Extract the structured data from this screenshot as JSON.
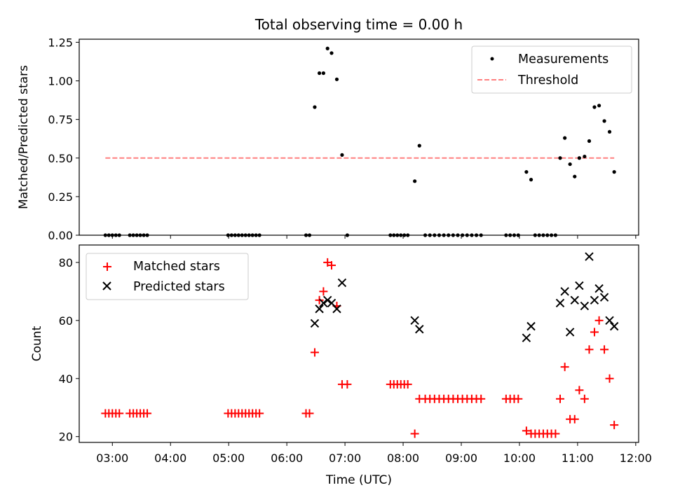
{
  "figure_title": "Total observing time = 0.00 h",
  "xlabel": "Time (UTC)",
  "x_tick_labels": [
    "03:00",
    "04:00",
    "05:00",
    "06:00",
    "07:00",
    "08:00",
    "09:00",
    "10:00",
    "11:00",
    "12:00"
  ],
  "colors": {
    "measurements": "#000000",
    "threshold": "#ff7f7f",
    "matched": "#ff0000",
    "predicted": "#000000"
  },
  "chart_data": [
    {
      "type": "scatter",
      "panel": "top",
      "ylabel": "Matched/Predicted stars",
      "xlim": [
        2.43,
        12.05
      ],
      "ylim": [
        0,
        1.27
      ],
      "y_tick_labels": [
        "0.00",
        "0.25",
        "0.50",
        "0.75",
        "1.00",
        "1.25"
      ],
      "legend": "top-right",
      "series": [
        {
          "name": "Measurements",
          "marker": "dot",
          "points": [
            [
              2.88,
              0
            ],
            [
              2.94,
              0
            ],
            [
              3.0,
              0
            ],
            [
              3.06,
              0
            ],
            [
              3.12,
              0
            ],
            [
              3.3,
              0
            ],
            [
              3.36,
              0
            ],
            [
              3.42,
              0
            ],
            [
              3.48,
              0
            ],
            [
              3.54,
              0
            ],
            [
              3.6,
              0
            ],
            [
              4.99,
              0
            ],
            [
              5.05,
              0
            ],
            [
              5.11,
              0
            ],
            [
              5.17,
              0
            ],
            [
              5.23,
              0
            ],
            [
              5.29,
              0
            ],
            [
              5.35,
              0
            ],
            [
              5.41,
              0
            ],
            [
              5.47,
              0
            ],
            [
              5.53,
              0
            ],
            [
              6.33,
              0
            ],
            [
              6.39,
              0
            ],
            [
              6.48,
              0.83
            ],
            [
              6.56,
              1.05
            ],
            [
              6.63,
              1.05
            ],
            [
              6.7,
              1.21
            ],
            [
              6.77,
              1.18
            ],
            [
              6.86,
              1.01
            ],
            [
              6.95,
              0.52
            ],
            [
              7.04,
              0
            ],
            [
              7.78,
              0
            ],
            [
              7.84,
              0
            ],
            [
              7.9,
              0
            ],
            [
              7.96,
              0
            ],
            [
              8.02,
              0
            ],
            [
              8.08,
              0
            ],
            [
              8.2,
              0.35
            ],
            [
              8.28,
              0.58
            ],
            [
              8.38,
              0
            ],
            [
              8.46,
              0
            ],
            [
              8.54,
              0
            ],
            [
              8.62,
              0
            ],
            [
              8.7,
              0
            ],
            [
              8.78,
              0
            ],
            [
              8.86,
              0
            ],
            [
              8.94,
              0
            ],
            [
              9.02,
              0
            ],
            [
              9.1,
              0
            ],
            [
              9.18,
              0
            ],
            [
              9.26,
              0
            ],
            [
              9.34,
              0
            ],
            [
              9.77,
              0
            ],
            [
              9.84,
              0
            ],
            [
              9.91,
              0
            ],
            [
              9.98,
              0
            ],
            [
              10.12,
              0.41
            ],
            [
              10.2,
              0.36
            ],
            [
              10.27,
              0
            ],
            [
              10.34,
              0
            ],
            [
              10.41,
              0
            ],
            [
              10.48,
              0
            ],
            [
              10.55,
              0
            ],
            [
              10.62,
              0
            ],
            [
              10.7,
              0.5
            ],
            [
              10.78,
              0.63
            ],
            [
              10.87,
              0.46
            ],
            [
              10.95,
              0.38
            ],
            [
              11.03,
              0.5
            ],
            [
              11.12,
              0.51
            ],
            [
              11.2,
              0.61
            ],
            [
              11.29,
              0.83
            ],
            [
              11.37,
              0.84
            ],
            [
              11.46,
              0.74
            ],
            [
              11.55,
              0.67
            ],
            [
              11.63,
              0.41
            ]
          ]
        },
        {
          "name": "Threshold",
          "line": "dashed",
          "points": [
            [
              2.88,
              0.5
            ],
            [
              11.63,
              0.5
            ]
          ]
        }
      ]
    },
    {
      "type": "scatter",
      "panel": "bottom",
      "xlabel": "Time (UTC)",
      "ylabel": "Count",
      "xlim": [
        2.43,
        12.05
      ],
      "ylim": [
        18,
        86
      ],
      "y_tick_labels": [
        "20",
        "40",
        "60",
        "80"
      ],
      "legend": "top-left",
      "series": [
        {
          "name": "Matched stars",
          "marker": "plus",
          "points": [
            [
              2.88,
              28
            ],
            [
              2.94,
              28
            ],
            [
              3.0,
              28
            ],
            [
              3.06,
              28
            ],
            [
              3.12,
              28
            ],
            [
              3.3,
              28
            ],
            [
              3.36,
              28
            ],
            [
              3.42,
              28
            ],
            [
              3.48,
              28
            ],
            [
              3.54,
              28
            ],
            [
              3.6,
              28
            ],
            [
              4.99,
              28
            ],
            [
              5.05,
              28
            ],
            [
              5.11,
              28
            ],
            [
              5.17,
              28
            ],
            [
              5.23,
              28
            ],
            [
              5.29,
              28
            ],
            [
              5.35,
              28
            ],
            [
              5.41,
              28
            ],
            [
              5.47,
              28
            ],
            [
              5.53,
              28
            ],
            [
              6.33,
              28
            ],
            [
              6.39,
              28
            ],
            [
              6.48,
              49
            ],
            [
              6.56,
              67
            ],
            [
              6.63,
              70
            ],
            [
              6.7,
              80
            ],
            [
              6.77,
              79
            ],
            [
              6.86,
              65
            ],
            [
              6.95,
              38
            ],
            [
              7.04,
              38
            ],
            [
              7.78,
              38
            ],
            [
              7.84,
              38
            ],
            [
              7.9,
              38
            ],
            [
              7.96,
              38
            ],
            [
              8.02,
              38
            ],
            [
              8.08,
              38
            ],
            [
              8.2,
              21
            ],
            [
              8.28,
              33
            ],
            [
              8.38,
              33
            ],
            [
              8.46,
              33
            ],
            [
              8.54,
              33
            ],
            [
              8.62,
              33
            ],
            [
              8.7,
              33
            ],
            [
              8.78,
              33
            ],
            [
              8.86,
              33
            ],
            [
              8.94,
              33
            ],
            [
              9.02,
              33
            ],
            [
              9.1,
              33
            ],
            [
              9.18,
              33
            ],
            [
              9.26,
              33
            ],
            [
              9.34,
              33
            ],
            [
              9.77,
              33
            ],
            [
              9.84,
              33
            ],
            [
              9.91,
              33
            ],
            [
              9.98,
              33
            ],
            [
              10.12,
              22
            ],
            [
              10.2,
              21
            ],
            [
              10.27,
              21
            ],
            [
              10.34,
              21
            ],
            [
              10.41,
              21
            ],
            [
              10.48,
              21
            ],
            [
              10.55,
              21
            ],
            [
              10.62,
              21
            ],
            [
              10.7,
              33
            ],
            [
              10.78,
              44
            ],
            [
              10.87,
              26
            ],
            [
              10.95,
              26
            ],
            [
              11.03,
              36
            ],
            [
              11.12,
              33
            ],
            [
              11.2,
              50
            ],
            [
              11.29,
              56
            ],
            [
              11.37,
              60
            ],
            [
              11.46,
              50
            ],
            [
              11.55,
              40
            ],
            [
              11.63,
              24
            ]
          ]
        },
        {
          "name": "Predicted stars",
          "marker": "x",
          "points": [
            [
              6.48,
              59
            ],
            [
              6.56,
              64
            ],
            [
              6.63,
              66
            ],
            [
              6.7,
              67
            ],
            [
              6.77,
              66
            ],
            [
              6.86,
              64
            ],
            [
              6.95,
              73
            ],
            [
              8.2,
              60
            ],
            [
              8.28,
              57
            ],
            [
              10.12,
              54
            ],
            [
              10.2,
              58
            ],
            [
              10.7,
              66
            ],
            [
              10.78,
              70
            ],
            [
              10.87,
              56
            ],
            [
              10.95,
              67
            ],
            [
              11.03,
              72
            ],
            [
              11.12,
              65
            ],
            [
              11.2,
              82
            ],
            [
              11.29,
              67
            ],
            [
              11.37,
              71
            ],
            [
              11.46,
              68
            ],
            [
              11.55,
              60
            ],
            [
              11.63,
              58
            ]
          ]
        }
      ]
    }
  ]
}
